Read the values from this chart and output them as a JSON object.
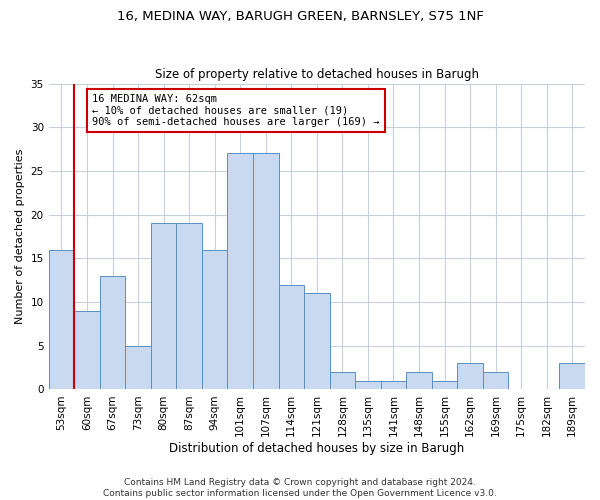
{
  "title1": "16, MEDINA WAY, BARUGH GREEN, BARNSLEY, S75 1NF",
  "title2": "Size of property relative to detached houses in Barugh",
  "xlabel": "Distribution of detached houses by size in Barugh",
  "ylabel": "Number of detached properties",
  "categories": [
    "53sqm",
    "60sqm",
    "67sqm",
    "73sqm",
    "80sqm",
    "87sqm",
    "94sqm",
    "101sqm",
    "107sqm",
    "114sqm",
    "121sqm",
    "128sqm",
    "135sqm",
    "141sqm",
    "148sqm",
    "155sqm",
    "162sqm",
    "169sqm",
    "175sqm",
    "182sqm",
    "189sqm"
  ],
  "values": [
    16,
    9,
    13,
    5,
    19,
    19,
    16,
    27,
    27,
    12,
    11,
    2,
    1,
    1,
    2,
    1,
    3,
    2,
    0,
    0,
    3
  ],
  "bar_color": "#c9d9f0",
  "bar_edge_color": "#5a8fc2",
  "grid_color": "#c8d0e0",
  "vline_color": "#cc0000",
  "annotation_text": "16 MEDINA WAY: 62sqm\n← 10% of detached houses are smaller (19)\n90% of semi-detached houses are larger (169) →",
  "annotation_box_color": "#ffffff",
  "annotation_box_edge": "#cc0000",
  "ylim": [
    0,
    35
  ],
  "yticks": [
    0,
    5,
    10,
    15,
    20,
    25,
    30,
    35
  ],
  "footnote": "Contains HM Land Registry data © Crown copyright and database right 2024.\nContains public sector information licensed under the Open Government Licence v3.0.",
  "title1_fontsize": 9.5,
  "title2_fontsize": 8.5,
  "xlabel_fontsize": 8.5,
  "ylabel_fontsize": 8,
  "tick_fontsize": 7.5,
  "annotation_fontsize": 7.5,
  "footnote_fontsize": 6.5
}
